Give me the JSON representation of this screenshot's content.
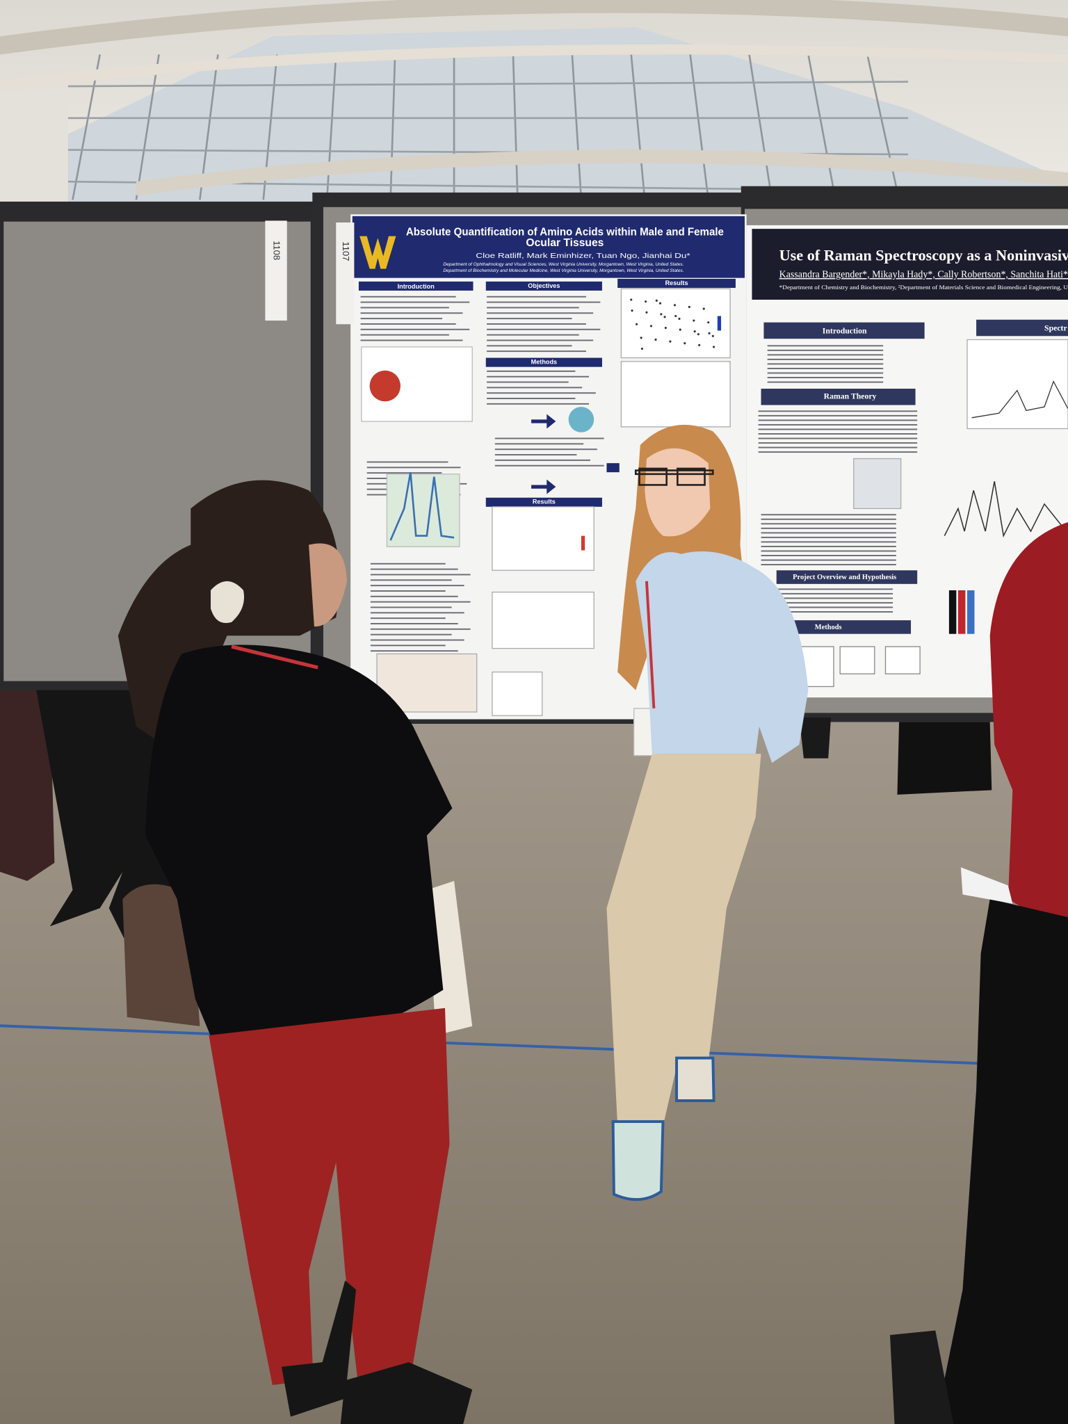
{
  "booths": [
    "1108",
    "1107"
  ],
  "poster_left": {
    "title_lines": [
      "Absolute Quantification of Amino Acids within Male and Female",
      "Ocular Tissues"
    ],
    "authors": "Cloe Ratliff, Mark Eminhizer, Tuan Ngo, Jianhai Du*",
    "affiliations": [
      "Department of Ophthalmology and Visual Sciences, West Virginia University, Morgantown, West Virginia, United States.",
      "Department of Biochemistry and Molecular Medicine, West Virginia University, Morgantown, West Virginia, United States."
    ],
    "sections": [
      "Introduction",
      "Objectives",
      "Results",
      "Methods",
      "Results"
    ]
  },
  "poster_right": {
    "title": "Use of Raman Spectroscopy as a Noninvasive Te",
    "authors": "Kassandra Bargender*, Mikayla Hady*, Cally Robertson*, Sanchita Hati*",
    "affiliation": "*Department of Chemistry and Biochemistry, ²Department of Materials Science and Biomedical Engineering, U",
    "sections": [
      "Introduction",
      "Raman Theory",
      "Project Overview and Hypothesis",
      "Methods",
      "Spectr"
    ]
  }
}
